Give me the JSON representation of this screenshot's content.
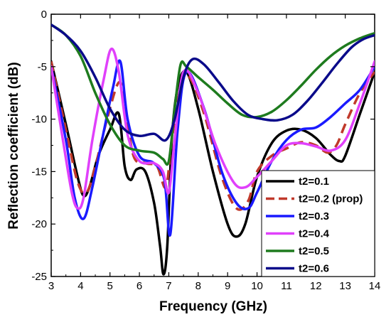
{
  "chart_data": {
    "type": "line",
    "title": "",
    "xlabel": "Frequency (GHz)",
    "ylabel": "Reflection coefficient (dB)",
    "xlim": [
      3,
      14
    ],
    "ylim": [
      -25,
      0
    ],
    "xticks": [
      3,
      4,
      5,
      6,
      7,
      8,
      9,
      10,
      11,
      12,
      13,
      14
    ],
    "yticks": [
      0,
      -5,
      -10,
      -15,
      -20,
      -25
    ],
    "xtick_labels": [
      "3",
      "4",
      "5",
      "6",
      "7",
      "8",
      "9",
      "10",
      "11",
      "12",
      "13",
      "14"
    ],
    "ytick_labels": [
      "0",
      "-5",
      "-10",
      "-15",
      "-20",
      "-25"
    ],
    "legend_position": "bottom-right",
    "series": [
      {
        "name": "t2=0.1",
        "color": "#000000",
        "dash": "solid",
        "x": [
          3,
          3.5,
          3.9,
          4.1,
          4.3,
          4.6,
          5.0,
          5.3,
          5.5,
          5.7,
          5.9,
          6.2,
          6.5,
          6.7,
          6.82,
          6.95,
          7.1,
          7.3,
          7.6,
          8.0,
          8.5,
          9.0,
          9.3,
          9.6,
          10.0,
          10.5,
          11.0,
          11.5,
          12.0,
          12.5,
          12.8,
          13.0,
          13.5,
          14
        ],
        "y": [
          -4.5,
          -10.5,
          -15.5,
          -17.3,
          -16.5,
          -13.5,
          -11,
          -9.5,
          -14.5,
          -15.8,
          -14.8,
          -15.0,
          -18.0,
          -22.0,
          -24.8,
          -22.0,
          -12.0,
          -7.0,
          -5.5,
          -9.0,
          -15.0,
          -20.0,
          -21.2,
          -20.0,
          -15.5,
          -12.3,
          -11.1,
          -11.0,
          -11.8,
          -13.4,
          -14.0,
          -13.5,
          -9.5,
          -5.5
        ]
      },
      {
        "name": "t2=0.2 (prop)",
        "color": "#c0392b",
        "dash": "dashed",
        "x": [
          3,
          3.5,
          3.9,
          4.2,
          4.5,
          4.9,
          5.3,
          5.5,
          5.8,
          6.2,
          6.6,
          6.9,
          7.1,
          7.4,
          7.7,
          8.2,
          8.8,
          9.3,
          9.7,
          10.0,
          10.5,
          11.0,
          11.5,
          12.0,
          12.4,
          12.7,
          13.0,
          13.5,
          14
        ],
        "y": [
          -4.5,
          -11.0,
          -16.0,
          -17.0,
          -14.5,
          -10.0,
          -6.5,
          -8.5,
          -13.5,
          -14.2,
          -14.5,
          -16.5,
          -12.0,
          -7.0,
          -6.0,
          -9.5,
          -15.5,
          -18.5,
          -17.8,
          -15.0,
          -13.5,
          -12.8,
          -12.2,
          -12.5,
          -13.2,
          -12.5,
          -10.5,
          -7.5,
          -5.5
        ]
      },
      {
        "name": "t2=0.3",
        "color": "#1a1aff",
        "dash": "solid",
        "x": [
          3,
          3.5,
          3.8,
          4.1,
          4.4,
          4.8,
          5.1,
          5.35,
          5.6,
          6.0,
          6.5,
          6.85,
          7.05,
          7.3,
          7.6,
          8.2,
          8.8,
          9.3,
          9.7,
          10.0,
          10.5,
          11.0,
          11.5,
          12.0,
          12.5,
          13.0,
          13.5,
          14
        ],
        "y": [
          -5.0,
          -12.0,
          -17.5,
          -19.5,
          -16.5,
          -11.0,
          -7.0,
          -4.5,
          -10.0,
          -13.5,
          -14.2,
          -15.8,
          -21.0,
          -11.0,
          -5.5,
          -9.0,
          -15.0,
          -18.0,
          -18.5,
          -17.0,
          -14.0,
          -12.0,
          -11.0,
          -10.8,
          -9.8,
          -8.5,
          -7.2,
          -5.0
        ]
      },
      {
        "name": "t2=0.4",
        "color": "#e040fb",
        "dash": "solid",
        "x": [
          3,
          3.4,
          3.7,
          3.9,
          4.1,
          4.4,
          4.8,
          5.05,
          5.3,
          5.6,
          6.0,
          6.5,
          6.8,
          7.0,
          7.2,
          7.5,
          8.0,
          8.6,
          9.2,
          9.6,
          10.0,
          10.5,
          11.0,
          11.5,
          12.0,
          12.5,
          13.0,
          13.5,
          14
        ],
        "y": [
          -5.0,
          -12.0,
          -17.0,
          -18.5,
          -17.5,
          -12.0,
          -6.0,
          -3.3,
          -5.5,
          -11.5,
          -14.0,
          -14.2,
          -15.0,
          -17.0,
          -12.0,
          -5.5,
          -7.5,
          -12.5,
          -16.0,
          -16.5,
          -15.5,
          -14.0,
          -12.5,
          -12.3,
          -12.6,
          -13.0,
          -12.0,
          -8.5,
          -4.5
        ]
      },
      {
        "name": "t2=0.5",
        "color": "#1e7b1e",
        "dash": "solid",
        "x": [
          3,
          3.5,
          4.0,
          4.5,
          5.0,
          5.5,
          6.0,
          6.5,
          6.8,
          7.0,
          7.2,
          7.4,
          7.6,
          8.0,
          8.5,
          9.0,
          9.5,
          10.0,
          10.5,
          11.0,
          11.5,
          12.0,
          12.5,
          13.0,
          13.5,
          14
        ],
        "y": [
          -1.0,
          -2.0,
          -4.0,
          -7.5,
          -10.5,
          -12.5,
          -13.0,
          -13.2,
          -13.8,
          -14.0,
          -9.0,
          -4.8,
          -5.0,
          -6.0,
          -7.2,
          -8.5,
          -9.6,
          -9.8,
          -9.3,
          -8.2,
          -6.8,
          -5.3,
          -4.0,
          -3.0,
          -2.3,
          -1.8
        ]
      },
      {
        "name": "t2=0.6",
        "color": "#0a0a8a",
        "dash": "solid",
        "x": [
          3,
          3.5,
          4.0,
          4.5,
          5.0,
          5.5,
          6.0,
          6.5,
          6.9,
          7.2,
          7.5,
          7.8,
          8.2,
          8.7,
          9.2,
          9.7,
          10.2,
          10.7,
          11.2,
          11.7,
          12.2,
          12.7,
          13.2,
          13.6,
          14
        ],
        "y": [
          -1.0,
          -2.0,
          -3.5,
          -6.0,
          -9.0,
          -11.0,
          -11.6,
          -11.4,
          -12.0,
          -10.0,
          -6.0,
          -4.3,
          -4.8,
          -6.5,
          -8.3,
          -9.6,
          -10.0,
          -10.1,
          -9.6,
          -8.3,
          -6.6,
          -4.8,
          -3.2,
          -2.4,
          -2.0
        ]
      }
    ]
  }
}
